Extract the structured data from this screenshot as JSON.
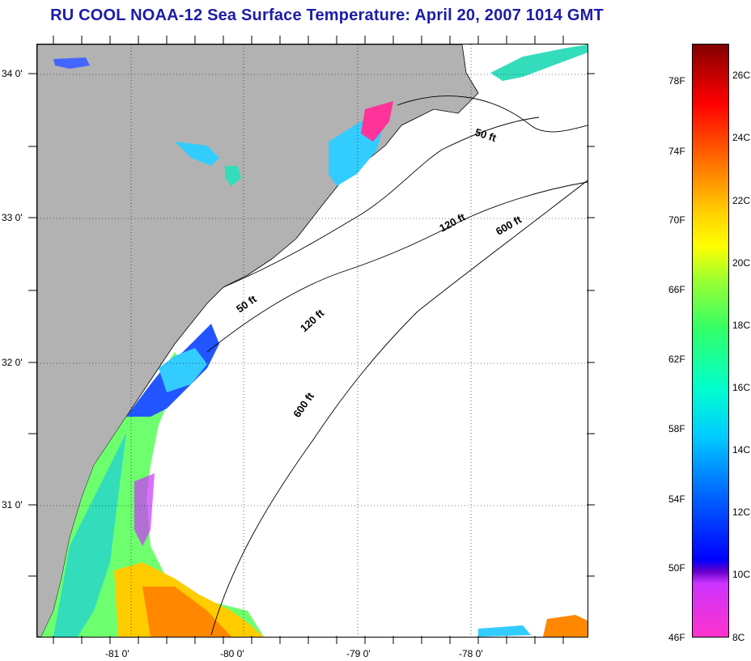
{
  "title": "RU COOL  NOAA-12  Sea Surface Temperature:  April 20, 2007 1014 GMT",
  "map": {
    "lat_labels": [
      "34 0'",
      "33 0'",
      "32 0'",
      "31 0'"
    ],
    "lon_labels": [
      "-81 0'",
      "-80 0'",
      "-79 0'",
      "-78 0'"
    ],
    "contour_labels": [
      "50 ft",
      "120 ft",
      "600 ft",
      "50 ft",
      "120 ft",
      "600 ft"
    ],
    "land_color": "#b2b2b2",
    "coastline_color": "#000000"
  },
  "colorbar": {
    "fahrenheit_labels": [
      "78F",
      "74F",
      "70F",
      "66F",
      "62F",
      "58F",
      "54F",
      "50F",
      "46F"
    ],
    "celsius_labels": [
      "26C",
      "24C",
      "22C",
      "20C",
      "18C",
      "16C",
      "14C",
      "12C",
      "10C",
      "8C"
    ]
  }
}
